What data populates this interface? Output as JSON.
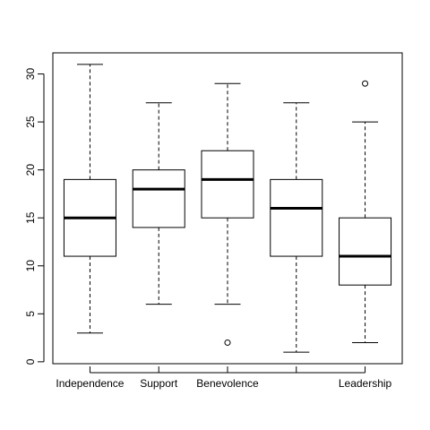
{
  "chart_data": {
    "type": "boxplot",
    "categories": [
      "Independence",
      "Support",
      "Benevolence",
      "",
      "Leadership"
    ],
    "boxes": [
      {
        "label": "Independence",
        "whisker_low": 3,
        "q1": 11,
        "median": 15,
        "q3": 19,
        "whisker_high": 31,
        "outliers": []
      },
      {
        "label": "Support",
        "whisker_low": 6,
        "q1": 14,
        "median": 18,
        "q3": 20,
        "whisker_high": 27,
        "outliers": []
      },
      {
        "label": "Benevolence",
        "whisker_low": 6,
        "q1": 15,
        "median": 19,
        "q3": 22,
        "whisker_high": 29,
        "outliers": [
          2
        ]
      },
      {
        "label": "",
        "whisker_low": 1,
        "q1": 11,
        "median": 16,
        "q3": 19,
        "whisker_high": 27,
        "outliers": []
      },
      {
        "label": "Leadership",
        "whisker_low": 2,
        "q1": 8,
        "median": 11,
        "q3": 15,
        "whisker_high": 25,
        "outliers": [
          29
        ]
      }
    ],
    "y_ticks": [
      0,
      5,
      10,
      15,
      20,
      25,
      30
    ],
    "ylim": [
      -0.2,
      32.2
    ],
    "title": "",
    "xlabel": "",
    "ylabel": "",
    "grid": false,
    "legend": "none"
  }
}
